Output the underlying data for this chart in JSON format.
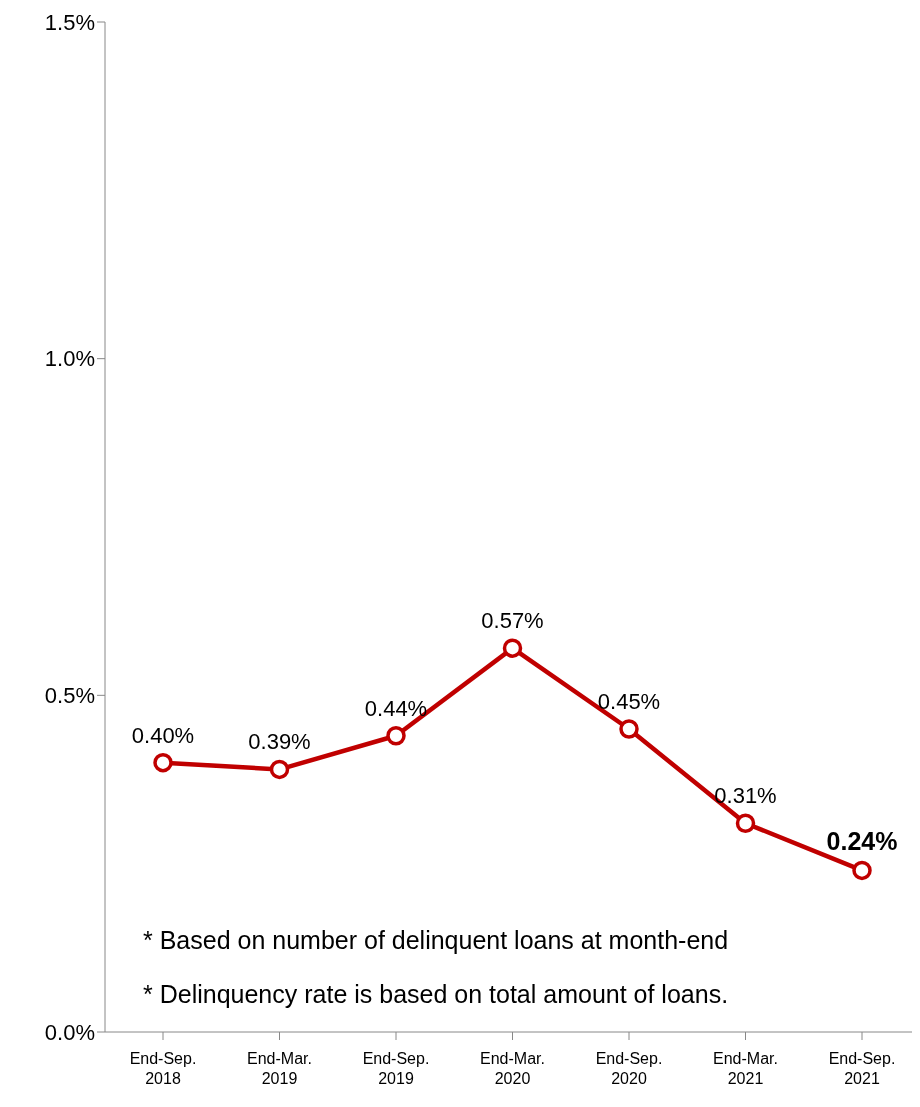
{
  "chart_data": {
    "type": "line",
    "categories": [
      "End-Sep. 2018",
      "End-Mar. 2019",
      "End-Sep. 2019",
      "End-Mar. 2020",
      "End-Sep. 2020",
      "End-Mar. 2021",
      "End-Sep. 2021"
    ],
    "series": [
      {
        "color": "#c00000",
        "values": [
          0.4,
          0.39,
          0.44,
          0.57,
          0.45,
          0.31,
          0.24
        ],
        "value_labels": [
          "0.40%",
          "0.39%",
          "0.44%",
          "0.57%",
          "0.45%",
          "0.31%",
          "0.24%"
        ]
      }
    ],
    "ylim": [
      0,
      1.5
    ],
    "yticks": [
      {
        "value": 0,
        "label": "0.0%"
      },
      {
        "value": 0.5,
        "label": "0.5%"
      },
      {
        "value": 1.0,
        "label": "1.0%"
      },
      {
        "value": 1.5,
        "label": "1.5%"
      }
    ],
    "grid": false,
    "legend": false,
    "marker": "circle",
    "line_style": "solid",
    "annotations": [
      "* Based on number of delinquent loans at month-end",
      "* Delinquency rate is based on total amount of loans."
    ]
  }
}
